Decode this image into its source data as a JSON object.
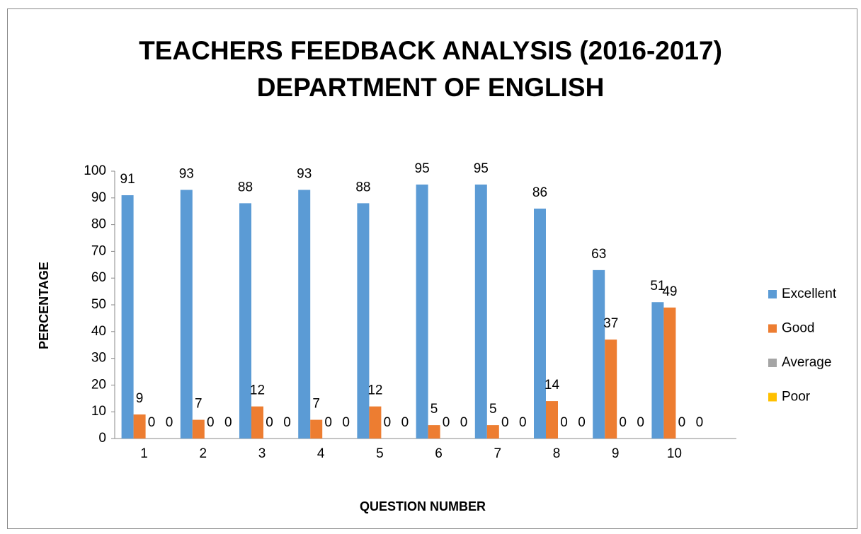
{
  "chart_data": {
    "type": "bar",
    "title": "TEACHERS FEEDBACK ANALYSIS (2016-2017)",
    "subtitle": "DEPARTMENT OF ENGLISH",
    "x_label": "QUESTION NUMBER",
    "y_label": "PERCENTAGE",
    "categories": [
      "1",
      "2",
      "3",
      "4",
      "5",
      "6",
      "7",
      "8",
      "9",
      "10"
    ],
    "series": [
      {
        "name": "Excellent",
        "color": "#5b9bd5",
        "values": [
          91,
          93,
          88,
          93,
          88,
          95,
          95,
          86,
          63,
          51
        ]
      },
      {
        "name": "Good",
        "color": "#ed7d31",
        "values": [
          9,
          7,
          12,
          7,
          12,
          5,
          5,
          14,
          37,
          49
        ]
      },
      {
        "name": "Average",
        "color": "#a5a5a5",
        "values": [
          0,
          0,
          0,
          0,
          0,
          0,
          0,
          0,
          0,
          0
        ]
      },
      {
        "name": "Poor",
        "color": "#ffc000",
        "values": [
          0,
          0,
          0,
          0,
          0,
          0,
          0,
          0,
          0,
          0
        ]
      }
    ],
    "ylim": [
      0,
      100
    ],
    "yticks": [
      0,
      10,
      20,
      30,
      40,
      50,
      60,
      70,
      80,
      90,
      100
    ],
    "grid": false,
    "legend": "right"
  }
}
